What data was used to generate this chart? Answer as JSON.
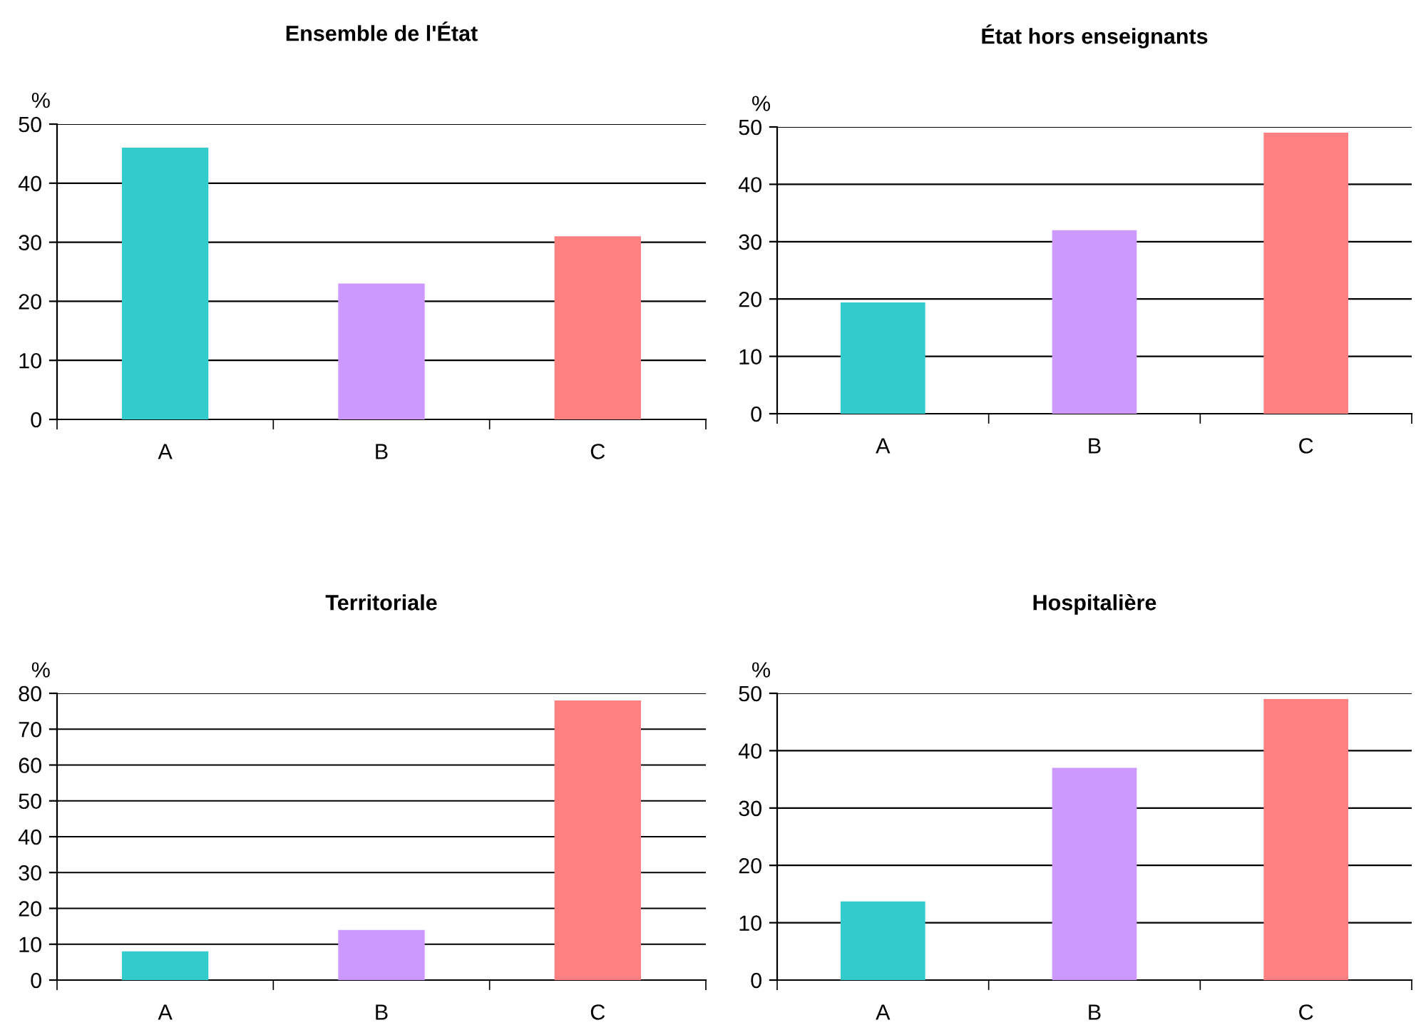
{
  "chart_data": [
    {
      "type": "bar",
      "title": "Ensemble de l'État",
      "ylabel": "%",
      "categories": [
        "A",
        "B",
        "C"
      ],
      "values": [
        46,
        23,
        31
      ],
      "colors": [
        "#33cccc",
        "#cc99ff",
        "#ff8080"
      ],
      "ylim": [
        0,
        50
      ],
      "yticks": [
        0,
        10,
        20,
        30,
        40,
        50
      ],
      "grid": "y"
    },
    {
      "type": "bar",
      "title": "État hors enseignants",
      "ylabel": "%",
      "categories": [
        "A",
        "B",
        "C"
      ],
      "values": [
        19.4,
        32,
        49
      ],
      "colors": [
        "#33cccc",
        "#cc99ff",
        "#ff8080"
      ],
      "ylim": [
        0,
        50
      ],
      "yticks": [
        0,
        10,
        20,
        30,
        40,
        50
      ],
      "grid": "y"
    },
    {
      "type": "bar",
      "title": "Territoriale",
      "ylabel": "%",
      "categories": [
        "A",
        "B",
        "C"
      ],
      "values": [
        8,
        14,
        78
      ],
      "colors": [
        "#33cccc",
        "#cc99ff",
        "#ff8080"
      ],
      "ylim": [
        0,
        80
      ],
      "yticks": [
        0,
        10,
        20,
        30,
        40,
        50,
        60,
        70,
        80
      ],
      "grid": "y"
    },
    {
      "type": "bar",
      "title": "Hospitalière",
      "ylabel": "%",
      "categories": [
        "A",
        "B",
        "C"
      ],
      "values": [
        13.7,
        37,
        49
      ],
      "colors": [
        "#33cccc",
        "#cc99ff",
        "#ff8080"
      ],
      "ylim": [
        0,
        50
      ],
      "yticks": [
        0,
        10,
        20,
        30,
        40,
        50
      ],
      "grid": "y"
    }
  ]
}
